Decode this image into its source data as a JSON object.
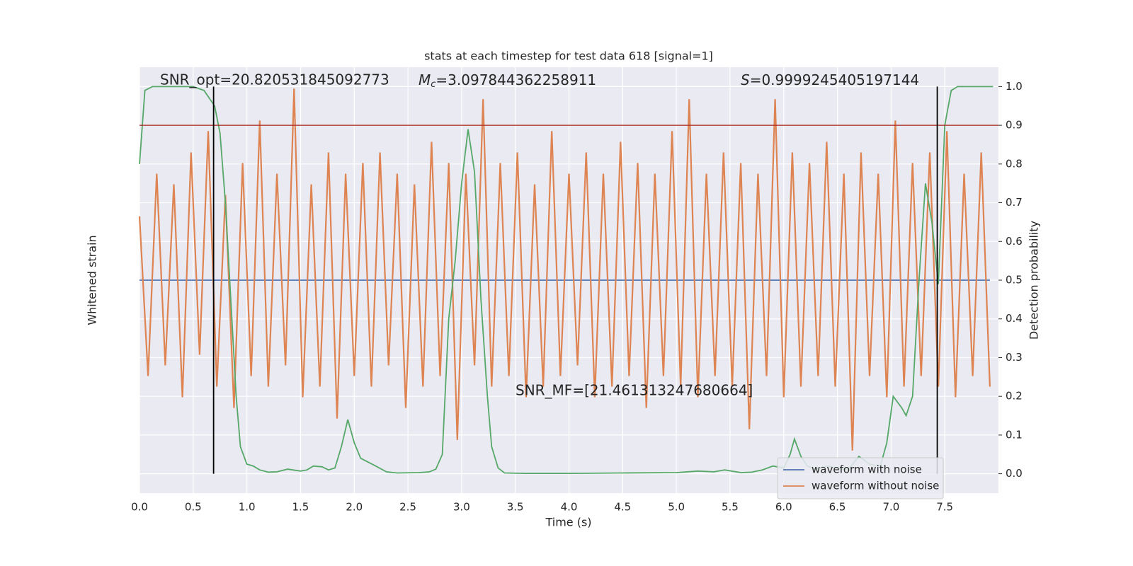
{
  "chart_data": {
    "type": "line",
    "title": "stats at each timestep for test data 618 [signal=1]",
    "x_label": "Time (s)",
    "y_label": "Whitened strain",
    "y2_label": "Detection probability",
    "annotations": {
      "snr_opt": "SNR_opt=20.820531845092773",
      "mc": [
        "M",
        "c",
        "=3.097844362258911"
      ],
      "s": [
        "S",
        "=0.9999245405197144"
      ],
      "snr_mf": "SNR_MF=[21.461313247680664]"
    },
    "xlim": [
      0,
      8.0
    ],
    "xticks": [
      {
        "value": 0,
        "label": "0.0"
      },
      0.5,
      {
        "value": 1,
        "label": "1.0"
      },
      1.5,
      {
        "value": 2,
        "label": "2.0"
      },
      2.5,
      {
        "value": 3,
        "label": "3.0"
      },
      3.5,
      {
        "value": 4,
        "label": "4.0"
      },
      4.5,
      {
        "value": 5,
        "label": "5.0"
      },
      5.5,
      {
        "value": 6,
        "label": "6.0"
      },
      6.5,
      {
        "value": 7,
        "label": "7.0"
      },
      7.5
    ],
    "ylim": [
      -1,
      1
    ],
    "y2lim": [
      -0.05,
      1.05
    ],
    "y2ticks": [
      {
        "value": 0,
        "label": "0.0"
      },
      0.1,
      0.2,
      0.3,
      0.4,
      0.5,
      0.6,
      0.7,
      0.8,
      0.9,
      {
        "value": 1,
        "label": "1.0"
      }
    ],
    "grid": true,
    "legend": "lower right",
    "hline": {
      "value": 0.9,
      "color": "#b03a2e",
      "axis": "y2"
    },
    "vlines": {
      "x": [
        0.69,
        7.43
      ],
      "ymin": 0,
      "ymax": 1,
      "color": "#000000",
      "axis": "y2"
    },
    "series": [
      {
        "name": "waveform with noise",
        "color": "#4c72b0",
        "legend": true,
        "x": [
          0,
          2,
          4,
          6,
          7.92
        ],
        "values": [
          0,
          0,
          0,
          0,
          0
        ]
      },
      {
        "name": "waveform without noise",
        "color": "#dd8452",
        "legend": true,
        "x": [
          0,
          0.08,
          0.16,
          0.24,
          0.32,
          0.4,
          0.48,
          0.56,
          0.64,
          0.72,
          0.8,
          0.88,
          0.96,
          1.04,
          1.12,
          1.2,
          1.28,
          1.36,
          1.44,
          1.52,
          1.6,
          1.68,
          1.76,
          1.84,
          1.92,
          2,
          2.08,
          2.16,
          2.24,
          2.32,
          2.4,
          2.48,
          2.56,
          2.64,
          2.72,
          2.8,
          2.88,
          2.96,
          3.04,
          3.12,
          3.2,
          3.28,
          3.36,
          3.44,
          3.52,
          3.6,
          3.68,
          3.76,
          3.84,
          3.92,
          4,
          4.08,
          4.16,
          4.24,
          4.32,
          4.4,
          4.48,
          4.56,
          4.64,
          4.72,
          4.8,
          4.88,
          4.96,
          5.04,
          5.12,
          5.2,
          5.28,
          5.36,
          5.44,
          5.52,
          5.6,
          5.68,
          5.76,
          5.84,
          5.92,
          6,
          6.08,
          6.16,
          6.24,
          6.32,
          6.4,
          6.48,
          6.56,
          6.64,
          6.72,
          6.8,
          6.88,
          6.96,
          7.04,
          7.12,
          7.2,
          7.28,
          7.36,
          7.44,
          7.52,
          7.6,
          7.68,
          7.76,
          7.84,
          7.92
        ],
        "values": [
          0.3,
          -0.45,
          0.5,
          -0.4,
          0.45,
          -0.55,
          0.6,
          -0.35,
          0.7,
          -0.5,
          0.4,
          -0.6,
          0.55,
          -0.45,
          0.75,
          -0.5,
          0.5,
          -0.4,
          0.9,
          -0.55,
          0.45,
          -0.5,
          0.6,
          -0.65,
          0.5,
          -0.45,
          0.55,
          -0.5,
          0.6,
          -0.4,
          0.5,
          -0.6,
          0.45,
          -0.5,
          0.65,
          -0.45,
          0.55,
          -0.75,
          0.5,
          -0.4,
          0.85,
          -0.5,
          0.55,
          -0.45,
          0.6,
          -0.55,
          0.45,
          -0.5,
          0.7,
          -0.45,
          0.5,
          -0.4,
          0.6,
          -0.55,
          0.5,
          -0.5,
          0.65,
          -0.45,
          0.55,
          -0.6,
          0.5,
          -0.45,
          0.7,
          -0.5,
          0.85,
          -0.55,
          0.5,
          -0.45,
          0.6,
          -0.5,
          0.55,
          -0.7,
          0.5,
          -0.45,
          0.85,
          -0.55,
          0.6,
          -0.5,
          0.55,
          -0.45,
          0.65,
          -0.5,
          0.5,
          -0.8,
          0.6,
          -0.45,
          0.5,
          -0.55,
          0.75,
          -0.5,
          0.55,
          -0.45,
          0.6,
          -0.5,
          0.7,
          -0.55,
          0.5,
          -0.45,
          0.6,
          -0.5
        ]
      },
      {
        "name": "Detection probability",
        "color": "#55a868",
        "axis": "y2",
        "legend": false,
        "x": [
          0,
          0.05,
          0.12,
          0.3,
          0.5,
          0.6,
          0.7,
          0.75,
          0.8,
          0.85,
          0.9,
          0.94,
          1,
          1.06,
          1.12,
          1.2,
          1.28,
          1.38,
          1.5,
          1.56,
          1.62,
          1.7,
          1.76,
          1.82,
          1.88,
          1.94,
          2,
          2.06,
          2.2,
          2.3,
          2.4,
          2.6,
          2.7,
          2.76,
          2.82,
          2.88,
          2.94,
          3,
          3.06,
          3.12,
          3.18,
          3.24,
          3.28,
          3.34,
          3.4,
          3.6,
          4,
          4.5,
          5,
          5.2,
          5.35,
          5.45,
          5.6,
          5.7,
          5.8,
          5.9,
          6,
          6.06,
          6.1,
          6.16,
          6.22,
          6.3,
          6.4,
          6.5,
          6.6,
          6.7,
          6.8,
          6.9,
          6.96,
          7.02,
          7.1,
          7.14,
          7.2,
          7.26,
          7.32,
          7.38,
          7.44,
          7.5,
          7.56,
          7.62,
          7.8,
          7.95
        ],
        "values": [
          0.8,
          0.99,
          1,
          1,
          1,
          0.99,
          0.95,
          0.88,
          0.7,
          0.45,
          0.2,
          0.07,
          0.025,
          0.02,
          0.01,
          0.004,
          0.005,
          0.012,
          0.007,
          0.01,
          0.02,
          0.018,
          0.01,
          0.015,
          0.07,
          0.14,
          0.08,
          0.04,
          0.02,
          0.005,
          0.002,
          0.003,
          0.005,
          0.012,
          0.05,
          0.4,
          0.55,
          0.75,
          0.89,
          0.78,
          0.45,
          0.2,
          0.07,
          0.015,
          0.002,
          0.001,
          0.001,
          0.002,
          0.003,
          0.007,
          0.005,
          0.01,
          0.003,
          0.004,
          0.01,
          0.02,
          0.015,
          0.05,
          0.09,
          0.045,
          0.02,
          0.012,
          0.02,
          0.015,
          0.01,
          0.045,
          0.025,
          0.02,
          0.08,
          0.2,
          0.17,
          0.15,
          0.2,
          0.5,
          0.75,
          0.65,
          0.49,
          0.9,
          0.99,
          1,
          1,
          1
        ]
      }
    ]
  }
}
